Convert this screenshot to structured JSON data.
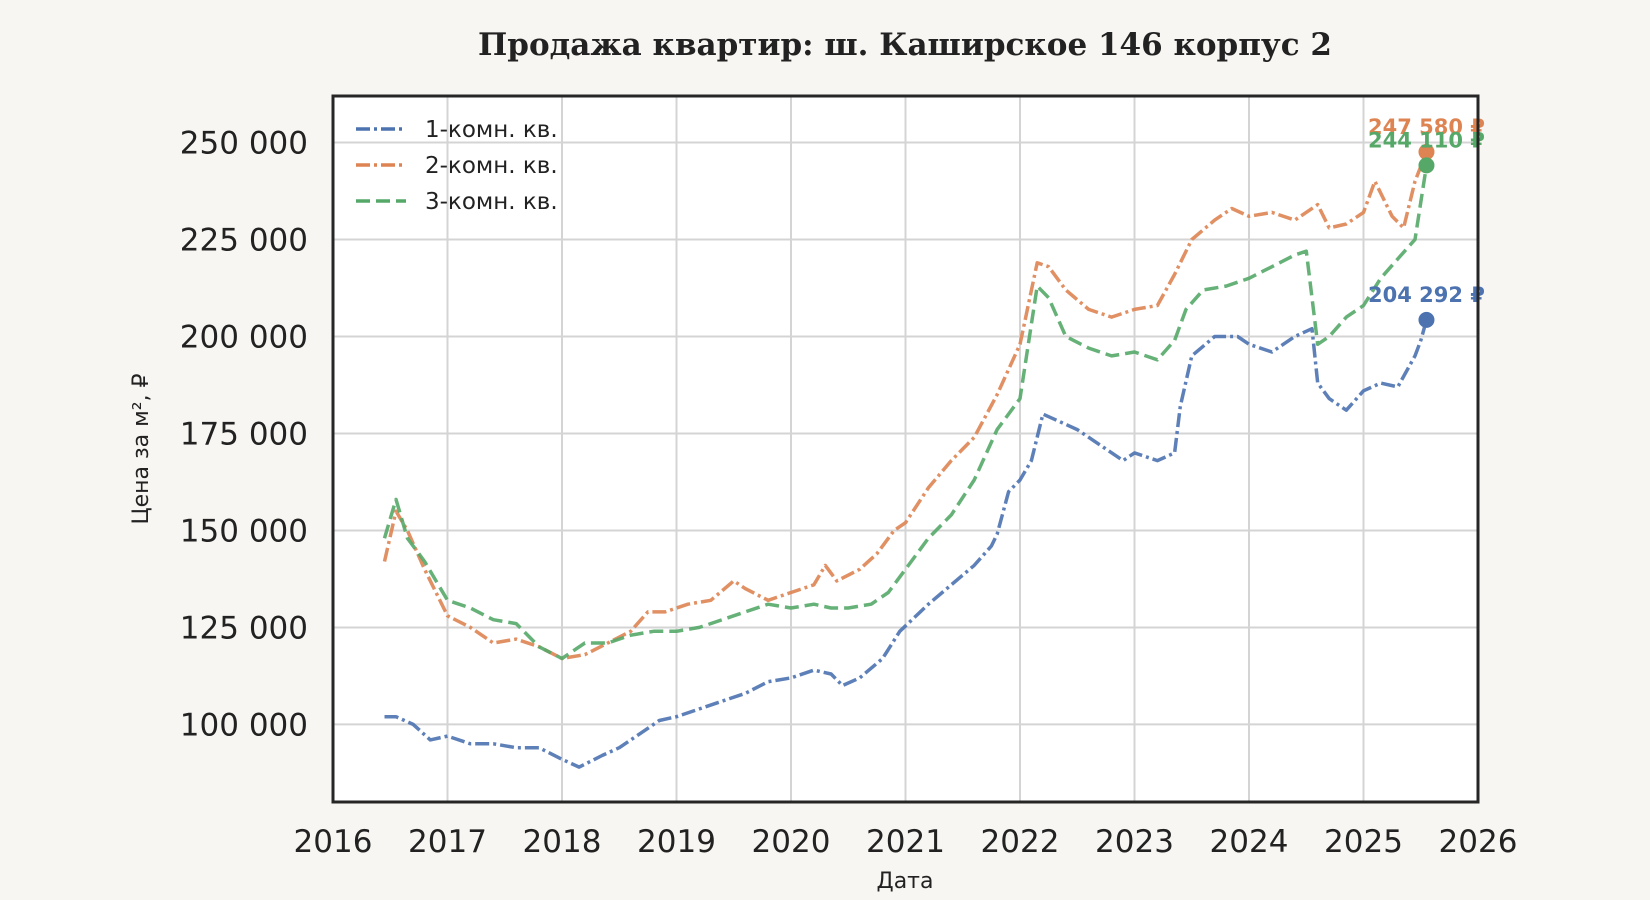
{
  "chart_data": {
    "type": "line",
    "title": "Продажа квартир: ш. Каширское 146 корпус 2",
    "xlabel": "Дата",
    "ylabel": "Цена за м², ₽",
    "xlim": [
      2016,
      2026
    ],
    "ylim": [
      80000,
      262000
    ],
    "x_ticks": [
      "2016",
      "2017",
      "2018",
      "2019",
      "2020",
      "2021",
      "2022",
      "2023",
      "2024",
      "2025",
      "2026"
    ],
    "y_ticks": [
      {
        "value": 100000,
        "label": "100 000"
      },
      {
        "value": 125000,
        "label": "125 000"
      },
      {
        "value": 150000,
        "label": "150 000"
      },
      {
        "value": 175000,
        "label": "175 000"
      },
      {
        "value": 200000,
        "label": "200 000"
      },
      {
        "value": 225000,
        "label": "225 000"
      },
      {
        "value": 250000,
        "label": "250 000"
      }
    ],
    "grid": true,
    "legend_position": "top-left",
    "series": [
      {
        "name": "1-комн. кв.",
        "color": "#4c72b0",
        "dash": "dash-dot",
        "end_label": "204 292 ₽",
        "end_value": 204292,
        "x": [
          2016.45,
          2016.55,
          2016.7,
          2016.85,
          2017.0,
          2017.2,
          2017.4,
          2017.6,
          2017.8,
          2018.0,
          2018.15,
          2018.35,
          2018.5,
          2018.7,
          2018.85,
          2019.0,
          2019.2,
          2019.4,
          2019.6,
          2019.8,
          2020.0,
          2020.2,
          2020.35,
          2020.45,
          2020.6,
          2020.8,
          2020.95,
          2021.2,
          2021.4,
          2021.6,
          2021.75,
          2021.8,
          2021.9,
          2022.0,
          2022.1,
          2022.2,
          2022.35,
          2022.5,
          2022.7,
          2022.9,
          2023.0,
          2023.2,
          2023.35,
          2023.4,
          2023.5,
          2023.7,
          2023.9,
          2024.0,
          2024.2,
          2024.4,
          2024.55,
          2024.6,
          2024.7,
          2024.85,
          2025.0,
          2025.15,
          2025.3,
          2025.45,
          2025.5,
          2025.55
        ],
        "y": [
          102000,
          102000,
          100000,
          96000,
          97000,
          95000,
          95000,
          94000,
          94000,
          91000,
          89000,
          92000,
          94000,
          98000,
          101000,
          102000,
          104000,
          106000,
          108000,
          111000,
          112000,
          114000,
          113000,
          110000,
          112000,
          117000,
          124000,
          131000,
          136000,
          141000,
          146000,
          149000,
          160000,
          163000,
          168000,
          180000,
          178000,
          176000,
          172000,
          168000,
          170000,
          168000,
          170000,
          182000,
          195000,
          200000,
          200000,
          198000,
          196000,
          200000,
          202000,
          188000,
          184000,
          181000,
          186000,
          188000,
          187000,
          195000,
          199000,
          204292
        ]
      },
      {
        "name": "2-комн. кв.",
        "color": "#dd8452",
        "dash": "dash-dot",
        "end_label": "247 580 ₽",
        "end_value": 247580,
        "x": [
          2016.45,
          2016.55,
          2016.65,
          2016.8,
          2017.0,
          2017.2,
          2017.4,
          2017.6,
          2017.8,
          2018.0,
          2018.2,
          2018.4,
          2018.6,
          2018.75,
          2018.9,
          2019.1,
          2019.3,
          2019.5,
          2019.6,
          2019.8,
          2020.0,
          2020.2,
          2020.3,
          2020.4,
          2020.6,
          2020.75,
          2020.9,
          2021.0,
          2021.2,
          2021.4,
          2021.6,
          2021.8,
          2022.0,
          2022.15,
          2022.25,
          2022.4,
          2022.6,
          2022.8,
          2023.0,
          2023.2,
          2023.35,
          2023.5,
          2023.7,
          2023.85,
          2024.0,
          2024.2,
          2024.4,
          2024.6,
          2024.7,
          2024.85,
          2025.0,
          2025.1,
          2025.25,
          2025.35,
          2025.45,
          2025.55
        ],
        "y": [
          142000,
          155000,
          150000,
          140000,
          128000,
          125000,
          121000,
          122000,
          120000,
          117000,
          118000,
          121000,
          124000,
          129000,
          129000,
          131000,
          132000,
          137000,
          135000,
          132000,
          134000,
          136000,
          141000,
          137000,
          140000,
          144000,
          150000,
          152000,
          161000,
          168000,
          174000,
          185000,
          198000,
          219000,
          218000,
          212000,
          207000,
          205000,
          207000,
          208000,
          216000,
          225000,
          230000,
          233000,
          231000,
          232000,
          230000,
          234000,
          228000,
          229000,
          232000,
          240000,
          231000,
          228000,
          240000,
          247580
        ]
      },
      {
        "name": "3-комн. кв.",
        "color": "#55a868",
        "dash": "dashed",
        "end_label": "244 110 ₽",
        "end_value": 244110,
        "x": [
          2016.45,
          2016.55,
          2016.65,
          2016.8,
          2017.0,
          2017.2,
          2017.4,
          2017.6,
          2017.8,
          2018.0,
          2018.2,
          2018.4,
          2018.6,
          2018.8,
          2019.0,
          2019.2,
          2019.4,
          2019.6,
          2019.8,
          2020.0,
          2020.2,
          2020.35,
          2020.5,
          2020.7,
          2020.85,
          2021.0,
          2021.2,
          2021.4,
          2021.6,
          2021.8,
          2022.0,
          2022.15,
          2022.25,
          2022.4,
          2022.6,
          2022.8,
          2023.0,
          2023.2,
          2023.35,
          2023.45,
          2023.6,
          2023.8,
          2024.0,
          2024.2,
          2024.4,
          2024.5,
          2024.6,
          2024.7,
          2024.85,
          2025.0,
          2025.15,
          2025.3,
          2025.45,
          2025.55
        ],
        "y": [
          148000,
          158000,
          148000,
          142000,
          132000,
          130000,
          127000,
          126000,
          120000,
          117000,
          121000,
          121000,
          123000,
          124000,
          124000,
          125000,
          127000,
          129000,
          131000,
          130000,
          131000,
          130000,
          130000,
          131000,
          134000,
          140000,
          148000,
          154000,
          163000,
          176000,
          184000,
          213000,
          210000,
          200000,
          197000,
          195000,
          196000,
          194000,
          199000,
          207000,
          212000,
          213000,
          215000,
          218000,
          221000,
          222000,
          198000,
          200000,
          205000,
          208000,
          215000,
          220000,
          225000,
          244110
        ]
      }
    ]
  }
}
